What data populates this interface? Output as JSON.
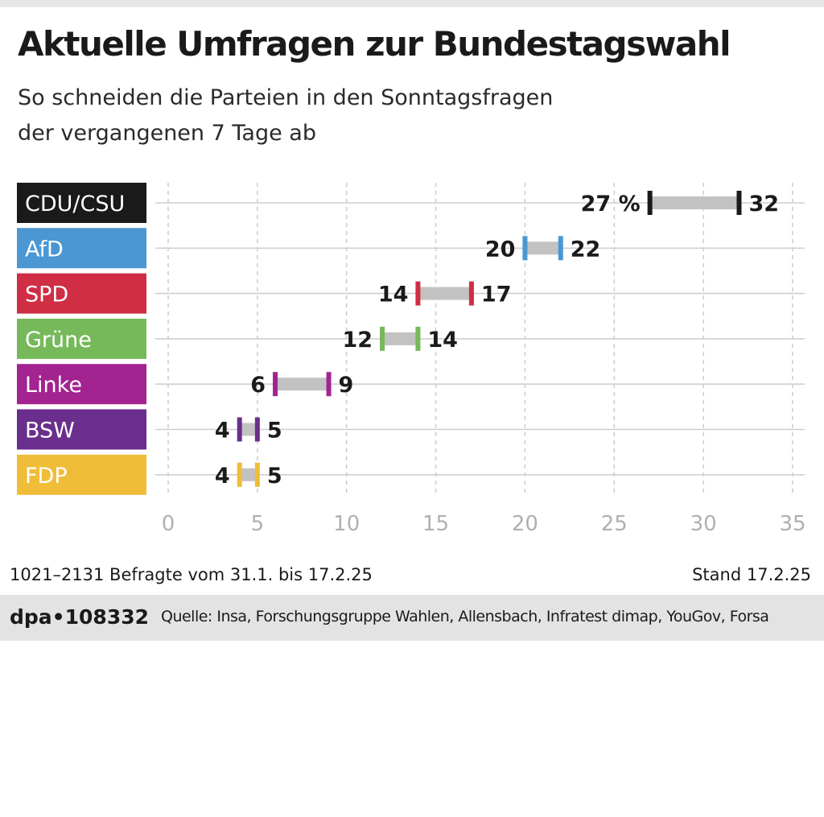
{
  "title": "Aktuelle Umfragen zur Bundestagswahl",
  "subtitle_line1": "So schneiden die Parteien in den Sonntagsfragen",
  "subtitle_line2": "der vergangenen 7 Tage ab",
  "footer": {
    "respondents": "1021–2131 Befragte vom 31.1. bis 17.2.25",
    "stand": "Stand 17.2.25",
    "dpa_id": "dpa•108332",
    "source": "Quelle: Insa, Forschungsgruppe Wahlen, Allensbach, Infratest dimap, YouGov, Forsa"
  },
  "colors": {
    "range_bar": "#c2c2c2",
    "grid": "#cfcfcf",
    "tick_label": "#b0b0b0"
  },
  "chart_data": {
    "type": "range-bar",
    "xlim": [
      0,
      35
    ],
    "xticks": [
      0,
      5,
      10,
      15,
      20,
      25,
      30,
      35
    ],
    "grid": true,
    "unit_label": "%",
    "series": [
      {
        "party": "CDU/CSU",
        "min": 27,
        "max": 32,
        "color": "#1a1a1a"
      },
      {
        "party": "AfD",
        "min": 20,
        "max": 22,
        "color": "#4a97d3"
      },
      {
        "party": "SPD",
        "min": 14,
        "max": 17,
        "color": "#cf2e45"
      },
      {
        "party": "Grüne",
        "min": 12,
        "max": 14,
        "color": "#76b95a"
      },
      {
        "party": "Linke",
        "min": 6,
        "max": 9,
        "color": "#a32390"
      },
      {
        "party": "BSW",
        "min": 4,
        "max": 5,
        "color": "#6a2e8c"
      },
      {
        "party": "FDP",
        "min": 4,
        "max": 5,
        "color": "#f0bd38"
      }
    ]
  }
}
